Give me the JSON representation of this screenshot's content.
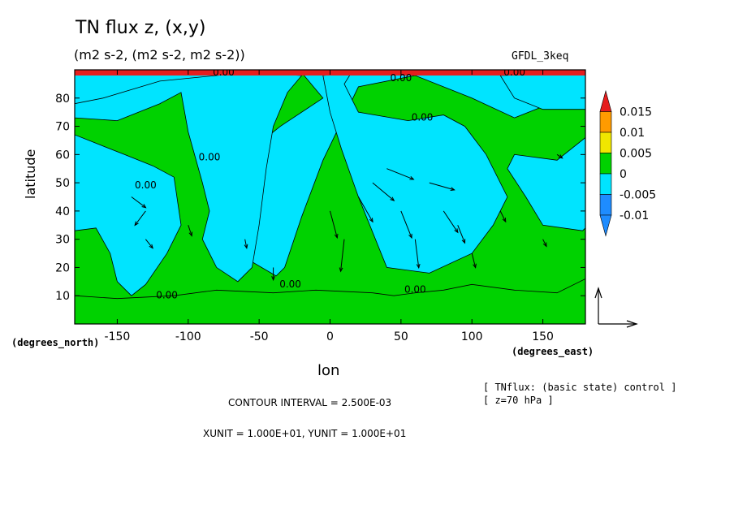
{
  "header": {
    "title": "TN flux z, (x,y)",
    "subtitle": "(m2 s-2, (m2 s-2, m2 s-2))",
    "dataset": "GFDL_3keq"
  },
  "axes": {
    "ylabel": "latitude",
    "yunit": "(degrees_north)",
    "xlabel": "lon",
    "xunit": "(degrees_east)"
  },
  "footer": {
    "contour_interval": "CONTOUR INTERVAL = 2.500E-03",
    "units": "XUNIT = 1.000E+01, YUNIT = 1.000E+01",
    "note_line1": "[ TNflux: (basic state) control ]",
    "note_line2": "[ z=70 hPa ]"
  },
  "colors": {
    "level_neg1": "#1e8cff",
    "level_neg0": "#00e4ff",
    "level_0": "#00d200",
    "level_1": "#f0e600",
    "level_2": "#ff9b00",
    "level_3": "#e61e1e"
  },
  "chart_data": {
    "type": "heatmap",
    "variable": "TN flux z",
    "xlim": [
      -180,
      180
    ],
    "ylim": [
      0,
      90
    ],
    "xticks": [
      -150,
      -100,
      -50,
      0,
      50,
      100,
      150
    ],
    "xtick_labels": [
      "-150",
      "-100",
      "-50",
      "0",
      "50",
      "100",
      "150"
    ],
    "yticks": [
      10,
      20,
      30,
      40,
      50,
      60,
      70,
      80
    ],
    "ytick_labels": [
      "10",
      "20",
      "30",
      "40",
      "50",
      "60",
      "70",
      "80"
    ],
    "colorbar": {
      "levels": [
        -0.01,
        -0.005,
        0,
        0.005,
        0.01,
        0.015
      ],
      "labels": [
        "-0.01",
        "-0.005",
        "0",
        "0.005",
        "0.01",
        "0.015"
      ],
      "bins": [
        {
          "range": "< -0.01",
          "color": "#1e8cff"
        },
        {
          "range": "-0.01 to -0.005",
          "color": "#1e8cff"
        },
        {
          "range": "-0.005 to 0",
          "color": "#00e4ff"
        },
        {
          "range": "0 to 0.005",
          "color": "#00d200"
        },
        {
          "range": "0.005 to 0.01",
          "color": "#f0e600"
        },
        {
          "range": "0.01 to 0.015",
          "color": "#ff9b00"
        },
        {
          "range": "> 0.015",
          "color": "#e61e1e"
        }
      ]
    },
    "contour_labels": [
      {
        "text": "0.00",
        "lon": -75,
        "lat": 88
      },
      {
        "text": "0.00",
        "lon": 50,
        "lat": 86
      },
      {
        "text": "0.00",
        "lon": 130,
        "lat": 88
      },
      {
        "text": "0.00",
        "lon": 65,
        "lat": 72
      },
      {
        "text": "0.00",
        "lon": -85,
        "lat": 58
      },
      {
        "text": "0.00",
        "lon": -130,
        "lat": 48
      },
      {
        "text": "0.00",
        "lon": -115,
        "lat": 9
      },
      {
        "text": "0.00",
        "lon": -28,
        "lat": 13
      },
      {
        "text": "0.00",
        "lon": 60,
        "lat": 11
      }
    ],
    "positive_regions": [
      {
        "name": "northern-green-band",
        "points": [
          [
            -180,
            76
          ],
          [
            -160,
            79
          ],
          [
            -120,
            84
          ],
          [
            -80,
            88
          ],
          [
            -20,
            89
          ],
          [
            -5,
            80
          ],
          [
            -35,
            70
          ],
          [
            -55,
            62
          ],
          [
            -62,
            50
          ],
          [
            -70,
            40
          ],
          [
            -60,
            30
          ],
          [
            -55,
            22
          ],
          [
            -38,
            17
          ],
          [
            -32,
            20
          ],
          [
            -20,
            38
          ],
          [
            -5,
            58
          ],
          [
            20,
            84
          ],
          [
            60,
            88
          ],
          [
            100,
            80
          ],
          [
            130,
            73
          ],
          [
            160,
            79
          ],
          [
            180,
            79
          ],
          [
            180,
            66
          ],
          [
            160,
            58
          ],
          [
            130,
            60
          ],
          [
            125,
            55
          ],
          [
            138,
            45
          ],
          [
            150,
            35
          ],
          [
            178,
            33
          ],
          [
            180,
            34
          ],
          [
            180,
            8
          ],
          [
            -180,
            8
          ]
        ]
      },
      {
        "name": "lower-green-belt",
        "points": [
          [
            -180,
            0
          ],
          [
            180,
            0
          ],
          [
            180,
            16
          ],
          [
            160,
            11
          ],
          [
            130,
            12
          ],
          [
            100,
            14
          ],
          [
            80,
            12
          ],
          [
            60,
            11
          ],
          [
            45,
            10
          ],
          [
            30,
            11
          ],
          [
            -10,
            12
          ],
          [
            -40,
            11
          ],
          [
            -80,
            12
          ],
          [
            -110,
            10
          ],
          [
            -150,
            9
          ],
          [
            -180,
            10
          ]
        ]
      }
    ],
    "negative_regions": [
      {
        "name": "north-pacific-cyan",
        "points": [
          [
            -180,
            33
          ],
          [
            -165,
            34
          ],
          [
            -155,
            25
          ],
          [
            -150,
            15
          ],
          [
            -140,
            10
          ],
          [
            -130,
            14
          ],
          [
            -115,
            25
          ],
          [
            -105,
            35
          ],
          [
            -110,
            52
          ],
          [
            -125,
            56
          ],
          [
            -145,
            60
          ],
          [
            -165,
            64
          ],
          [
            -180,
            67
          ]
        ]
      },
      {
        "name": "west-pacific-cyan",
        "points": [
          [
            -180,
            73
          ],
          [
            -150,
            72
          ],
          [
            -120,
            78
          ],
          [
            -105,
            82
          ],
          [
            -100,
            68
          ],
          [
            -90,
            50
          ],
          [
            -85,
            40
          ],
          [
            -90,
            30
          ],
          [
            -80,
            20
          ],
          [
            -65,
            15
          ],
          [
            -55,
            20
          ],
          [
            -50,
            35
          ],
          [
            -45,
            55
          ],
          [
            -40,
            70
          ],
          [
            -30,
            82
          ],
          [
            -20,
            88
          ],
          [
            -60,
            89
          ],
          [
            -120,
            86
          ],
          [
            -160,
            80
          ],
          [
            -180,
            78
          ]
        ]
      },
      {
        "name": "east-cyan",
        "points": [
          [
            -5,
            88
          ],
          [
            0,
            75
          ],
          [
            8,
            62
          ],
          [
            20,
            45
          ],
          [
            40,
            20
          ],
          [
            70,
            18
          ],
          [
            100,
            25
          ],
          [
            115,
            35
          ],
          [
            125,
            45
          ],
          [
            110,
            60
          ],
          [
            95,
            70
          ],
          [
            80,
            74
          ],
          [
            55,
            72
          ],
          [
            20,
            75
          ],
          [
            10,
            85
          ],
          [
            15,
            89
          ]
        ]
      },
      {
        "name": "arctic-cyan",
        "points": [
          [
            120,
            88
          ],
          [
            130,
            80
          ],
          [
            150,
            76
          ],
          [
            180,
            76
          ],
          [
            180,
            89
          ]
        ]
      }
    ],
    "vectors": {
      "scale_note": "XUNIT = 1.000E+01, YUNIT = 1.000E+01",
      "field": [
        {
          "lon": -140,
          "lat": 45,
          "u": 8,
          "v": -6
        },
        {
          "lon": -130,
          "lat": 40,
          "u": -6,
          "v": -8
        },
        {
          "lon": -130,
          "lat": 30,
          "u": 4,
          "v": -5
        },
        {
          "lon": -100,
          "lat": 35,
          "u": 2,
          "v": -6
        },
        {
          "lon": -60,
          "lat": 30,
          "u": 1,
          "v": -5
        },
        {
          "lon": -40,
          "lat": 20,
          "u": 0,
          "v": -7
        },
        {
          "lon": 0,
          "lat": 40,
          "u": 4,
          "v": -15
        },
        {
          "lon": 10,
          "lat": 30,
          "u": -2,
          "v": -18
        },
        {
          "lon": 20,
          "lat": 45,
          "u": 8,
          "v": -14
        },
        {
          "lon": 30,
          "lat": 50,
          "u": 12,
          "v": -10
        },
        {
          "lon": 40,
          "lat": 55,
          "u": 15,
          "v": -6
        },
        {
          "lon": 50,
          "lat": 40,
          "u": 6,
          "v": -15
        },
        {
          "lon": 60,
          "lat": 30,
          "u": 2,
          "v": -16
        },
        {
          "lon": 70,
          "lat": 50,
          "u": 14,
          "v": -4
        },
        {
          "lon": 80,
          "lat": 40,
          "u": 8,
          "v": -12
        },
        {
          "lon": 90,
          "lat": 35,
          "u": 4,
          "v": -10
        },
        {
          "lon": 100,
          "lat": 25,
          "u": 2,
          "v": -8
        },
        {
          "lon": 120,
          "lat": 40,
          "u": 3,
          "v": -6
        },
        {
          "lon": 150,
          "lat": 30,
          "u": 2,
          "v": -4
        },
        {
          "lon": 160,
          "lat": 60,
          "u": 3,
          "v": -2
        }
      ]
    }
  }
}
